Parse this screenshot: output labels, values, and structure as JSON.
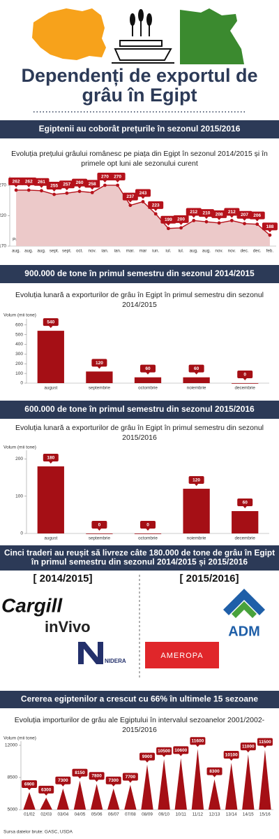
{
  "header": {
    "title": [
      "Dependenți de exportul de",
      "grâu în Egipt"
    ]
  },
  "banners": [
    [
      "Egiptenii au coborât prețurile în sezonul 2015/2016"
    ],
    [
      "900.000 de tone în primul semestru din sezonul 2014/2015"
    ],
    [
      "600.000 de tone în primul semestru din sezonul 2015/2016"
    ],
    [
      "Cinci traderi au reușit să livreze câte 180.000 de tone de grâu în Egipt",
      "în primul semestru din sezonul 2014/2015 și 2015/2016"
    ],
    [
      "Cererea egiptenilor a crescut cu 66% în ultimele 15 sezoane"
    ]
  ],
  "chart_data": [
    {
      "type": "area",
      "title": [
        "Evoluția prețului grâului românesc pe piața din Egipt în sezonul 2014/2015 și în",
        "primele opt luni ale sezonului curent"
      ],
      "y_label": "Preț C&F (dolari/tona)",
      "categories": [
        "aug.",
        "aug.",
        "aug.",
        "sept.",
        "sept.",
        "oct.",
        "nov.",
        "ian.",
        "ian.",
        "mar.",
        "mar",
        "iun.",
        "iul.",
        "iul.",
        "aug.",
        "aug.",
        "nov.",
        "nov.",
        "dec.",
        "dec.",
        "feb."
      ],
      "values": [
        262,
        262,
        261,
        255,
        257,
        260,
        258,
        270,
        270,
        237,
        243,
        223,
        199,
        200,
        212,
        210,
        208,
        212,
        207,
        206,
        188
      ],
      "ylim": [
        170,
        278
      ],
      "yticks": [
        170,
        220,
        270
      ],
      "color": "#b5121b",
      "area_color": "#ecc9c9"
    },
    {
      "type": "bar",
      "title": [
        "Evoluția lunară a exporturilor de grâu în Egipt în primul semestru din sezonul",
        "2014/2015"
      ],
      "y_label": "Volum (mii tone)",
      "categories": [
        "august",
        "septembrie",
        "octombrie",
        "noiembrie",
        "decembrie"
      ],
      "values": [
        540,
        120,
        60,
        60,
        0
      ],
      "ylim": [
        0,
        620
      ],
      "yticks": [
        0,
        100,
        200,
        300,
        400,
        500,
        600
      ],
      "color": "#a50f15"
    },
    {
      "type": "bar",
      "title": [
        "Evoluția lunară a exporturilor de grâu în Egipt în primul semestru din sezonul",
        "2015/2016"
      ],
      "y_label": "Volum (mii tone)",
      "categories": [
        "august",
        "septembrie",
        "octombrie",
        "noiembrie",
        "decembrie"
      ],
      "values": [
        180,
        0,
        0,
        120,
        60
      ],
      "ylim": [
        0,
        212
      ],
      "yticks": [
        0,
        100,
        200
      ],
      "color": "#a50f15"
    },
    {
      "type": "spike",
      "title": [
        "Evoluția importurilor de grâu ale Egiptului în intervalul sezoanelor 2001/2002-",
        "2015/2016"
      ],
      "y_label": "Volum (mii tone)",
      "categories": [
        "01/02",
        "02/03",
        "03/04",
        "04/05",
        "05/06",
        "06/07",
        "07/08",
        "08/09",
        "09/10",
        "10/11",
        "11/12",
        "12/13",
        "13/14",
        "14/15",
        "15/16"
      ],
      "values": [
        6900,
        6300,
        7300,
        8150,
        7800,
        7300,
        7700,
        9900,
        10500,
        10600,
        11600,
        8300,
        10100,
        11000,
        11500
      ],
      "ylim": [
        5000,
        12000
      ],
      "yticks": [
        5000,
        8500,
        12000
      ],
      "color": "#a50f15"
    }
  ],
  "traders": {
    "groups": [
      {
        "label": "[ 2014/2015]",
        "names": [
          "Cargill",
          "inVivo",
          "NIDERA"
        ]
      },
      {
        "label": "[ 2015/2016]",
        "names": [
          "ADM",
          "AMEROPA"
        ]
      }
    ]
  },
  "source": "Sursa datelor brute: GASC, USDA"
}
